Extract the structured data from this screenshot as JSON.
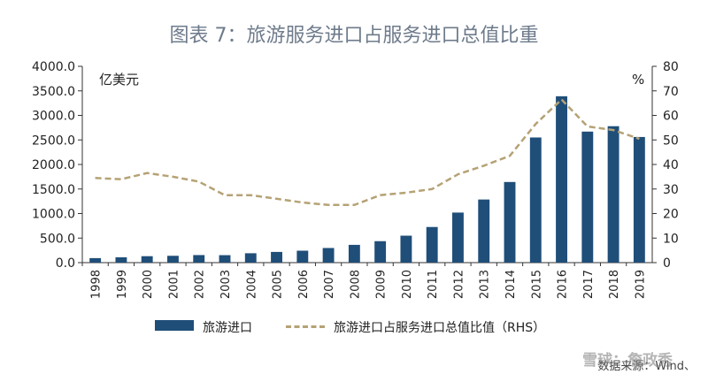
{
  "chart_data": {
    "type": "bar",
    "title": "图表 7：旅游服务进口占服务进口总值比重",
    "categories": [
      "1998",
      "1999",
      "2000",
      "2001",
      "2002",
      "2003",
      "2004",
      "2005",
      "2006",
      "2007",
      "2008",
      "2009",
      "2010",
      "2011",
      "2012",
      "2013",
      "2014",
      "2015",
      "2016",
      "2017",
      "2018",
      "2019"
    ],
    "y_left_unit": "亿美元",
    "y_right_unit": "%",
    "ylim_left": [
      0,
      4000
    ],
    "ylim_right": [
      0,
      80
    ],
    "y_left_ticks": [
      "0.0",
      "500.0",
      "1000.0",
      "1500.0",
      "2000.0",
      "2500.0",
      "3000.0",
      "3500.0",
      "4000.0"
    ],
    "y_right_ticks": [
      "0",
      "10",
      "20",
      "30",
      "40",
      "50",
      "60",
      "70",
      "80"
    ],
    "series": [
      {
        "name": "旅游进口",
        "type": "bar",
        "axis": "left",
        "values": [
          92,
          108,
          131,
          139,
          154,
          152,
          191,
          218,
          243,
          298,
          362,
          437,
          549,
          726,
          1020,
          1286,
          1643,
          2550,
          3390,
          2670,
          2780,
          2560
        ]
      },
      {
        "name": "旅游进口占服务进口总值比值（RHS）",
        "type": "line",
        "axis": "right",
        "values": [
          34.5,
          34.0,
          36.5,
          35.0,
          33.0,
          27.5,
          27.5,
          26.0,
          24.5,
          23.5,
          23.5,
          27.5,
          28.5,
          30.0,
          36.0,
          39.5,
          43.5,
          56.5,
          66.5,
          55.5,
          54.0,
          50.5
        ]
      }
    ],
    "colors": {
      "bar": "#1f4e79",
      "line": "#b5a275"
    }
  },
  "source_note": "数据来源：Wind、",
  "watermark": "雪球：詹政秀"
}
